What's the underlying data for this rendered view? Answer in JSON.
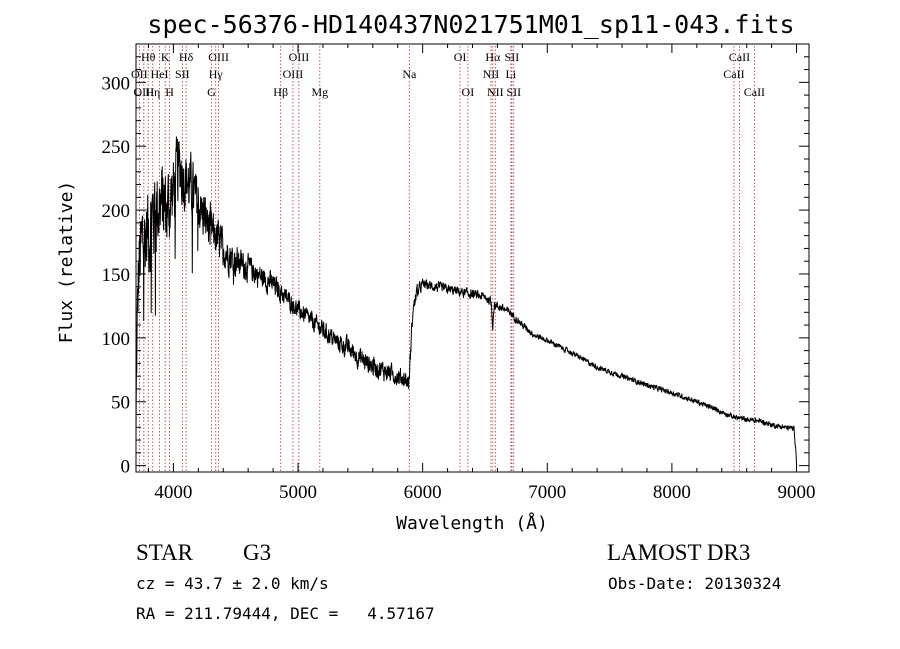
{
  "chart_data": {
    "type": "line",
    "title": "spec-56376-HD140437N021751M01_sp11-043.fits",
    "xlabel": "Wavelength (Å)",
    "ylabel": "Flux (relative)",
    "xlim": [
      3700,
      9100
    ],
    "ylim": [
      -5,
      330
    ],
    "xticks": [
      4000,
      5000,
      6000,
      7000,
      8000,
      9000
    ],
    "yticks": [
      0,
      50,
      100,
      150,
      200,
      250,
      300
    ],
    "spectrum_anchors": {
      "x": [
        3700,
        3705,
        3720,
        3750,
        3800,
        3850,
        3900,
        3950,
        4000,
        4050,
        4100,
        4150,
        4200,
        4250,
        4300,
        4400,
        4500,
        4600,
        4700,
        4800,
        4900,
        5000,
        5100,
        5200,
        5300,
        5400,
        5500,
        5600,
        5700,
        5800,
        5850,
        5890,
        5900,
        5920,
        5950,
        6000,
        6100,
        6200,
        6300,
        6400,
        6500,
        6550,
        6562,
        6575,
        6600,
        6700,
        6800,
        6900,
        7000,
        7200,
        7400,
        7600,
        7800,
        8000,
        8200,
        8400,
        8500,
        8600,
        8700,
        8800,
        8900,
        8980,
        8995,
        9000
      ],
      "y": [
        10,
        80,
        150,
        175,
        185,
        200,
        205,
        200,
        215,
        235,
        225,
        215,
        205,
        195,
        185,
        170,
        160,
        155,
        148,
        142,
        132,
        122,
        114,
        106,
        98,
        92,
        84,
        78,
        74,
        70,
        68,
        65,
        82,
        120,
        135,
        142,
        140,
        138,
        136,
        134,
        132,
        128,
        110,
        126,
        125,
        120,
        110,
        102,
        98,
        88,
        77,
        70,
        63,
        57,
        50,
        42,
        38,
        36,
        35,
        32,
        30,
        29,
        12,
        2
      ],
      "noise_amplitude": {
        "x": [
          3700,
          3850,
          4000,
          4300,
          4600,
          5000,
          5500,
          5900,
          6000,
          6600,
          7000,
          8000,
          9000
        ],
        "amp": [
          55,
          55,
          45,
          25,
          15,
          10,
          12,
          10,
          6,
          5,
          3,
          3,
          3
        ]
      }
    },
    "spectral_lines": [
      {
        "name": "Hθ",
        "wavelength": 3798,
        "row": 1
      },
      {
        "name": "OII",
        "wavelength": 3727,
        "row": 2
      },
      {
        "name": "OIII",
        "wavelength": 3763,
        "row": 3
      },
      {
        "name": "Hη",
        "wavelength": 3835,
        "row": 3
      },
      {
        "name": "HeI",
        "wavelength": 3889,
        "row": 2
      },
      {
        "name": "K",
        "wavelength": 3934,
        "row": 1
      },
      {
        "name": "SII",
        "wavelength": 4072,
        "row": 2
      },
      {
        "name": "H",
        "wavelength": 3969,
        "row": 3
      },
      {
        "name": "Hδ",
        "wavelength": 4102,
        "row": 1
      },
      {
        "name": "OIII",
        "wavelength": 4363,
        "row": 1
      },
      {
        "name": "Hγ",
        "wavelength": 4340,
        "row": 2
      },
      {
        "name": "G",
        "wavelength": 4305,
        "row": 3
      },
      {
        "name": "OIII",
        "wavelength": 5007,
        "row": 1
      },
      {
        "name": "OIII",
        "wavelength": 4959,
        "row": 2
      },
      {
        "name": "Hβ",
        "wavelength": 4861,
        "row": 3
      },
      {
        "name": "Mg",
        "wavelength": 5175,
        "row": 3
      },
      {
        "name": "Na",
        "wavelength": 5893,
        "row": 2
      },
      {
        "name": "OI",
        "wavelength": 6300,
        "row": 1
      },
      {
        "name": "OI",
        "wavelength": 6363,
        "row": 3
      },
      {
        "name": "Hα",
        "wavelength": 6563,
        "row": 1
      },
      {
        "name": "NII",
        "wavelength": 6548,
        "row": 2
      },
      {
        "name": "NII",
        "wavelength": 6583,
        "row": 3
      },
      {
        "name": "SII",
        "wavelength": 6716,
        "row": 1
      },
      {
        "name": "SII",
        "wavelength": 6731,
        "row": 3
      },
      {
        "name": "Li",
        "wavelength": 6708,
        "row": 2
      },
      {
        "name": "CaII",
        "wavelength": 8542,
        "row": 1
      },
      {
        "name": "CaII",
        "wavelength": 8498,
        "row": 2
      },
      {
        "name": "CaII",
        "wavelength": 8662,
        "row": 3
      }
    ],
    "line_color": "#b03030",
    "spectrum_color": "#000000"
  },
  "info": {
    "object_class": "STAR",
    "subclass": "G3",
    "survey": "LAMOST DR3",
    "cz": "cz = 43.7 ± 2.0 km/s",
    "obs_date": "Obs-Date: 20130324",
    "coords": "RA = 211.79444, DEC =   4.57167"
  }
}
